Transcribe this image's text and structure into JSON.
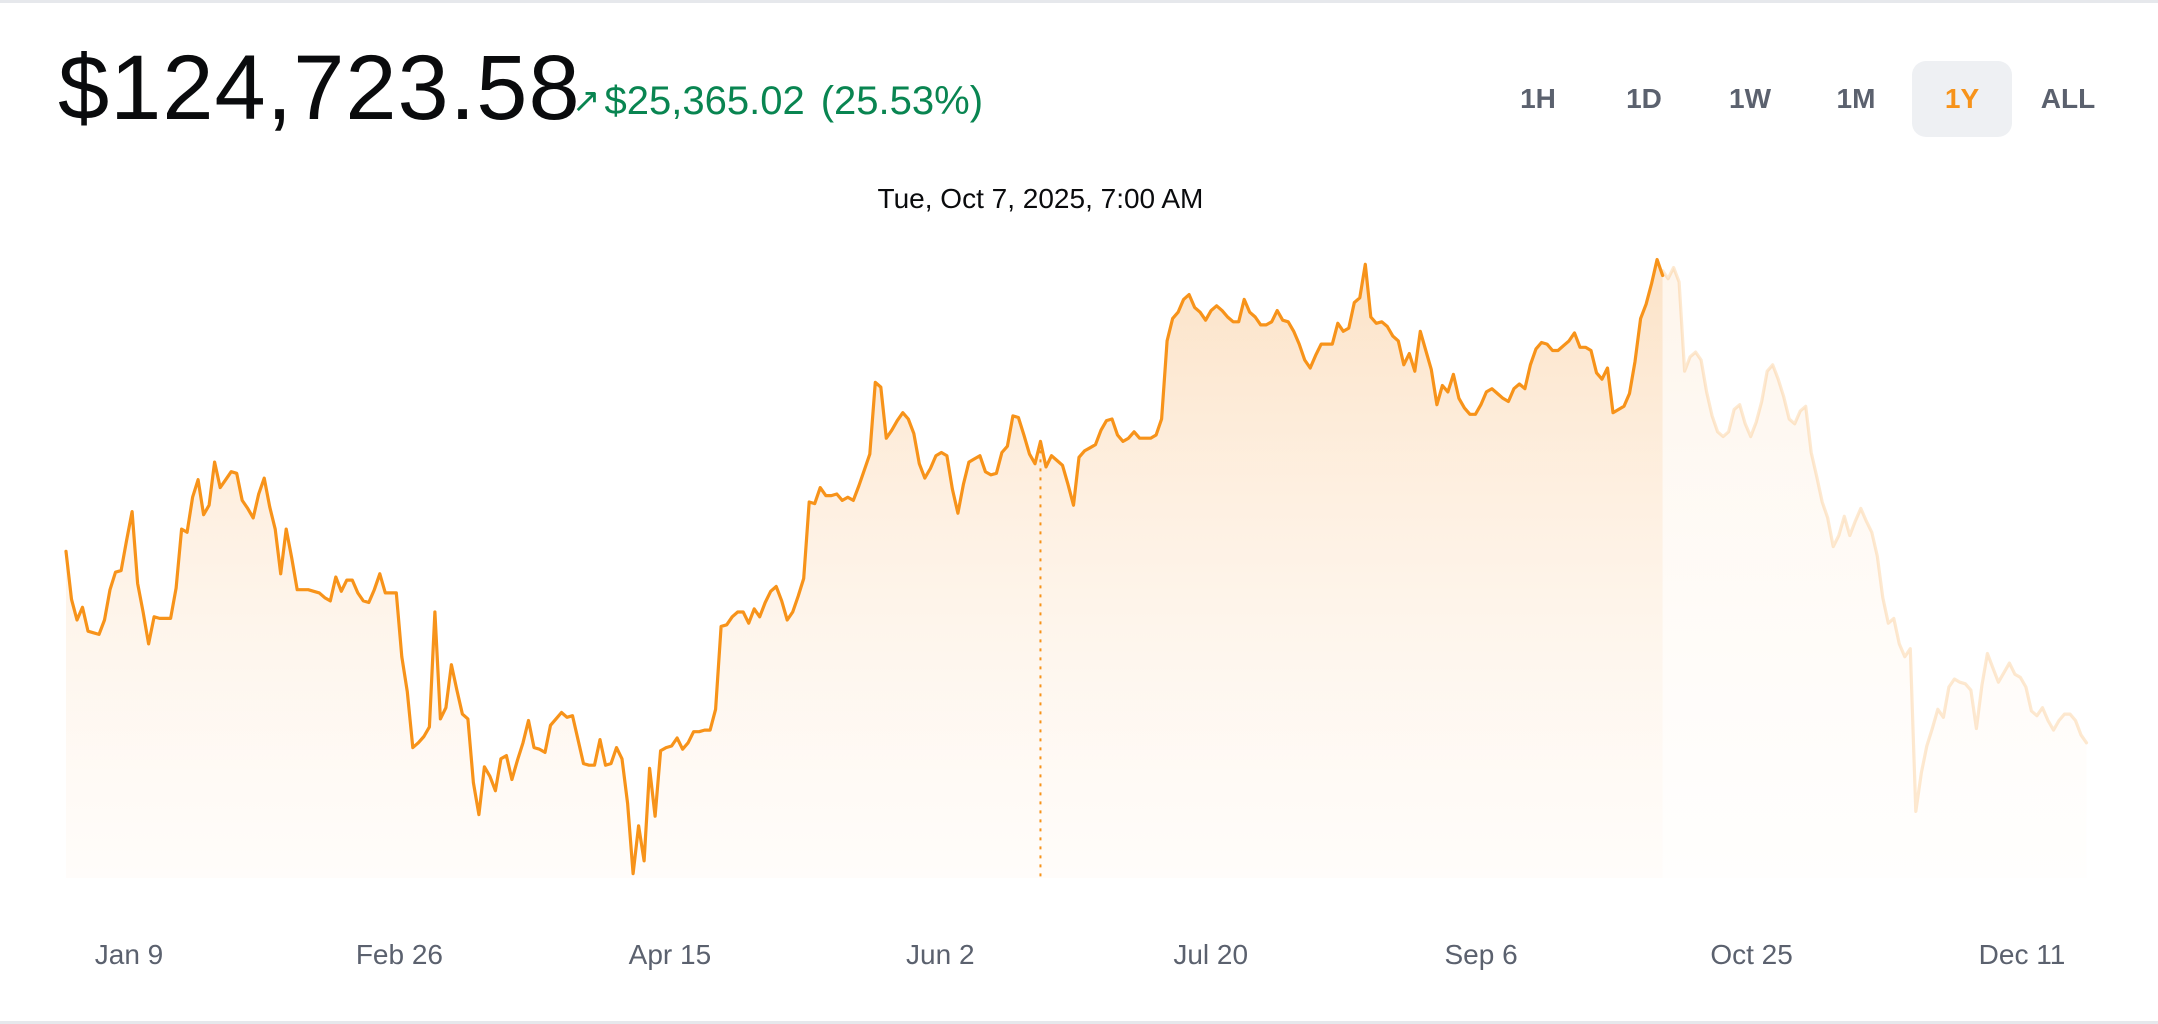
{
  "header": {
    "price": "$124,723.58",
    "change_arrow": "↗",
    "change_amount": "$25,365.02",
    "change_percent": "(25.53%)",
    "change_color": "#098551"
  },
  "range_tabs": [
    {
      "label": "1H",
      "active": false
    },
    {
      "label": "1D",
      "active": false
    },
    {
      "label": "1W",
      "active": false
    },
    {
      "label": "1M",
      "active": false
    },
    {
      "label": "1Y",
      "active": true
    },
    {
      "label": "ALL",
      "active": false
    }
  ],
  "tooltip": {
    "text": "Tue, Oct 7, 2025, 7:00 AM"
  },
  "colors": {
    "accent": "#f7931a",
    "text": "#0a0b0d",
    "muted": "#5b616e",
    "positive": "#098551"
  },
  "chart_data": {
    "type": "area",
    "x_tick_labels": [
      "Jan 9",
      "Feb 26",
      "Apr 15",
      "Jun 2",
      "Jul 20",
      "Sep 6",
      "Oct 25",
      "Dec 11"
    ],
    "hover_index": 177,
    "grid": false,
    "legend": "none",
    "series": [
      {
        "values": [
          119.4,
          116.4,
          115.1,
          115.9,
          114.4,
          114.3,
          114.2,
          115.1,
          117.0,
          118.1,
          118.2,
          120.1,
          121.9,
          117.4,
          115.6,
          113.6,
          115.3,
          115.2,
          115.2,
          115.2,
          117.1,
          120.8,
          120.6,
          122.8,
          123.9,
          121.7,
          122.3,
          125.0,
          123.4,
          123.9,
          124.4,
          124.3,
          122.6,
          122.1,
          121.5,
          123.0,
          124.0,
          122.2,
          120.8,
          118.0,
          120.8,
          119.0,
          117.0,
          117.0,
          117.0,
          116.9,
          116.8,
          116.5,
          116.3,
          117.8,
          116.9,
          117.6,
          117.6,
          116.8,
          116.3,
          116.2,
          117.0,
          118.0,
          116.8,
          116.8,
          116.8,
          112.8,
          110.6,
          107.1,
          107.4,
          107.8,
          108.4,
          115.6,
          108.9,
          109.6,
          112.3,
          110.7,
          109.2,
          108.9,
          104.9,
          102.9,
          105.9,
          105.3,
          104.4,
          106.4,
          106.6,
          105.1,
          106.3,
          107.4,
          108.8,
          107.1,
          107.0,
          106.8,
          108.5,
          108.9,
          109.3,
          109.0,
          109.1,
          107.6,
          106.1,
          106.0,
          106.0,
          107.6,
          106.0,
          106.1,
          107.1,
          106.4,
          103.6,
          99.2,
          102.2,
          100.0,
          105.8,
          102.8,
          106.9,
          107.1,
          107.2,
          107.7,
          107.0,
          107.4,
          108.1,
          108.1,
          108.2,
          108.2,
          109.5,
          114.7,
          114.8,
          115.3,
          115.6,
          115.6,
          114.9,
          115.8,
          115.3,
          116.2,
          116.9,
          117.2,
          116.3,
          115.1,
          115.6,
          116.6,
          117.7,
          122.5,
          122.4,
          123.4,
          122.9,
          122.9,
          123.0,
          122.6,
          122.8,
          122.6,
          123.5,
          124.5,
          125.5,
          130.0,
          129.7,
          126.5,
          127.0,
          127.6,
          128.1,
          127.7,
          126.8,
          124.9,
          124.0,
          124.6,
          125.4,
          125.6,
          125.4,
          123.3,
          121.8,
          123.6,
          125.0,
          125.2,
          125.4,
          124.4,
          124.2,
          124.3,
          125.6,
          126.0,
          127.9,
          127.8,
          126.7,
          125.5,
          124.9,
          126.3,
          124.7,
          125.4,
          125.1,
          124.8,
          123.6,
          122.3,
          125.3,
          125.7,
          125.9,
          126.1,
          127.0,
          127.6,
          127.7,
          126.7,
          126.3,
          126.5,
          126.9,
          126.5,
          126.5,
          126.5,
          126.7,
          127.7,
          132.6,
          134.0,
          134.4,
          135.2,
          135.5,
          134.7,
          134.4,
          133.9,
          134.5,
          134.8,
          134.5,
          134.1,
          133.8,
          133.8,
          135.2,
          134.4,
          134.1,
          133.6,
          133.6,
          133.8,
          134.5,
          133.9,
          133.8,
          133.2,
          132.4,
          131.4,
          130.9,
          131.7,
          132.4,
          132.4,
          132.4,
          133.7,
          133.2,
          133.4,
          135.0,
          135.3,
          137.4,
          134.1,
          133.7,
          133.8,
          133.5,
          132.9,
          132.6,
          131.1,
          131.8,
          130.7,
          133.2,
          132.0,
          130.8,
          128.6,
          129.8,
          129.4,
          130.5,
          129.0,
          128.4,
          128.0,
          128.0,
          128.6,
          129.4,
          129.6,
          129.3,
          129.0,
          128.8,
          129.6,
          129.9,
          129.6,
          131.1,
          132.1,
          132.5,
          132.4,
          132.0,
          132.0,
          132.3,
          132.6,
          133.1,
          132.2,
          132.2,
          132.0,
          130.6,
          130.2,
          130.9,
          128.1,
          128.3,
          128.5,
          129.3,
          131.3,
          134.0,
          134.9,
          136.2,
          137.7,
          136.7
        ]
      },
      {
        "values": [
          137.0,
          136.5,
          137.2,
          136.3,
          130.7,
          131.6,
          131.9,
          131.4,
          129.4,
          127.9,
          126.9,
          126.6,
          126.9,
          128.3,
          128.6,
          127.4,
          126.6,
          127.5,
          128.8,
          130.7,
          131.1,
          130.2,
          129.1,
          127.7,
          127.4,
          128.2,
          128.5,
          125.6,
          124.1,
          122.5,
          121.5,
          119.7,
          120.4,
          121.6,
          120.4,
          121.3,
          122.1,
          121.3,
          120.6,
          119.1,
          116.5,
          114.9,
          115.2,
          113.6,
          112.8,
          113.3,
          103.1,
          105.5,
          107.2,
          108.3,
          109.5,
          109.0,
          110.9,
          111.4,
          111.2,
          111.1,
          110.7,
          108.3,
          111.0,
          113.0,
          112.1,
          111.2,
          111.8,
          112.4,
          111.7,
          111.5,
          110.9,
          109.4,
          109.1,
          109.6,
          108.8,
          108.2,
          108.8,
          109.2,
          109.2,
          108.8,
          107.9,
          107.4
        ]
      }
    ],
    "ylim": [
      98.8,
      138.8
    ]
  }
}
